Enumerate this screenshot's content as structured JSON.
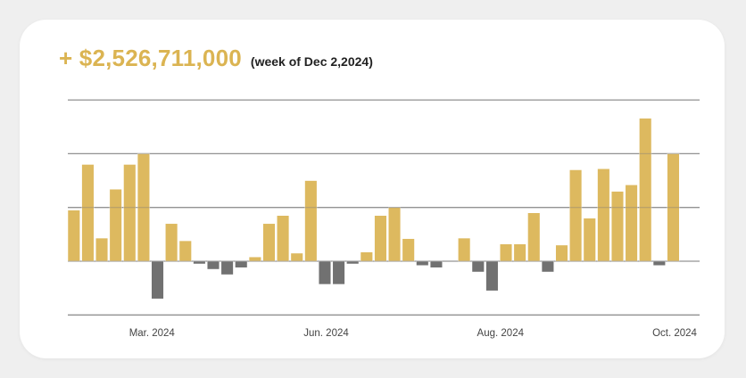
{
  "header": {
    "amount": "+ $2,526,711,000",
    "week": "(week of Dec 2,2024)"
  },
  "colors": {
    "positive": "#dbb452",
    "negative": "#666666",
    "grid": "#9a9a9a"
  },
  "chart_data": {
    "type": "bar",
    "title": "+ $2,526,711,000 (week of Dec 2,2024)",
    "xlabel": "",
    "ylabel": "",
    "ylim": [
      -1,
      3
    ],
    "grid": true,
    "x_ticks": [
      {
        "index": 5.6,
        "label": "Mar. 2024"
      },
      {
        "index": 18.1,
        "label": "Jun. 2024"
      },
      {
        "index": 30.6,
        "label": "Aug. 2024"
      },
      {
        "index": 43.1,
        "label": "Oct. 2024"
      }
    ],
    "values": [
      0.95,
      1.8,
      0.43,
      1.34,
      1.8,
      2.0,
      -0.7,
      0.7,
      0.38,
      -0.05,
      -0.15,
      -0.25,
      -0.12,
      0.08,
      0.7,
      0.85,
      0.15,
      1.5,
      -0.43,
      -0.43,
      -0.05,
      0.17,
      0.85,
      1.0,
      0.42,
      -0.08,
      -0.12,
      0,
      0.43,
      -0.2,
      -0.55,
      0.32,
      0.32,
      0.9,
      -0.2,
      0.3,
      1.7,
      0.8,
      1.72,
      1.3,
      1.42,
      2.66,
      -0.08,
      2.0
    ]
  }
}
